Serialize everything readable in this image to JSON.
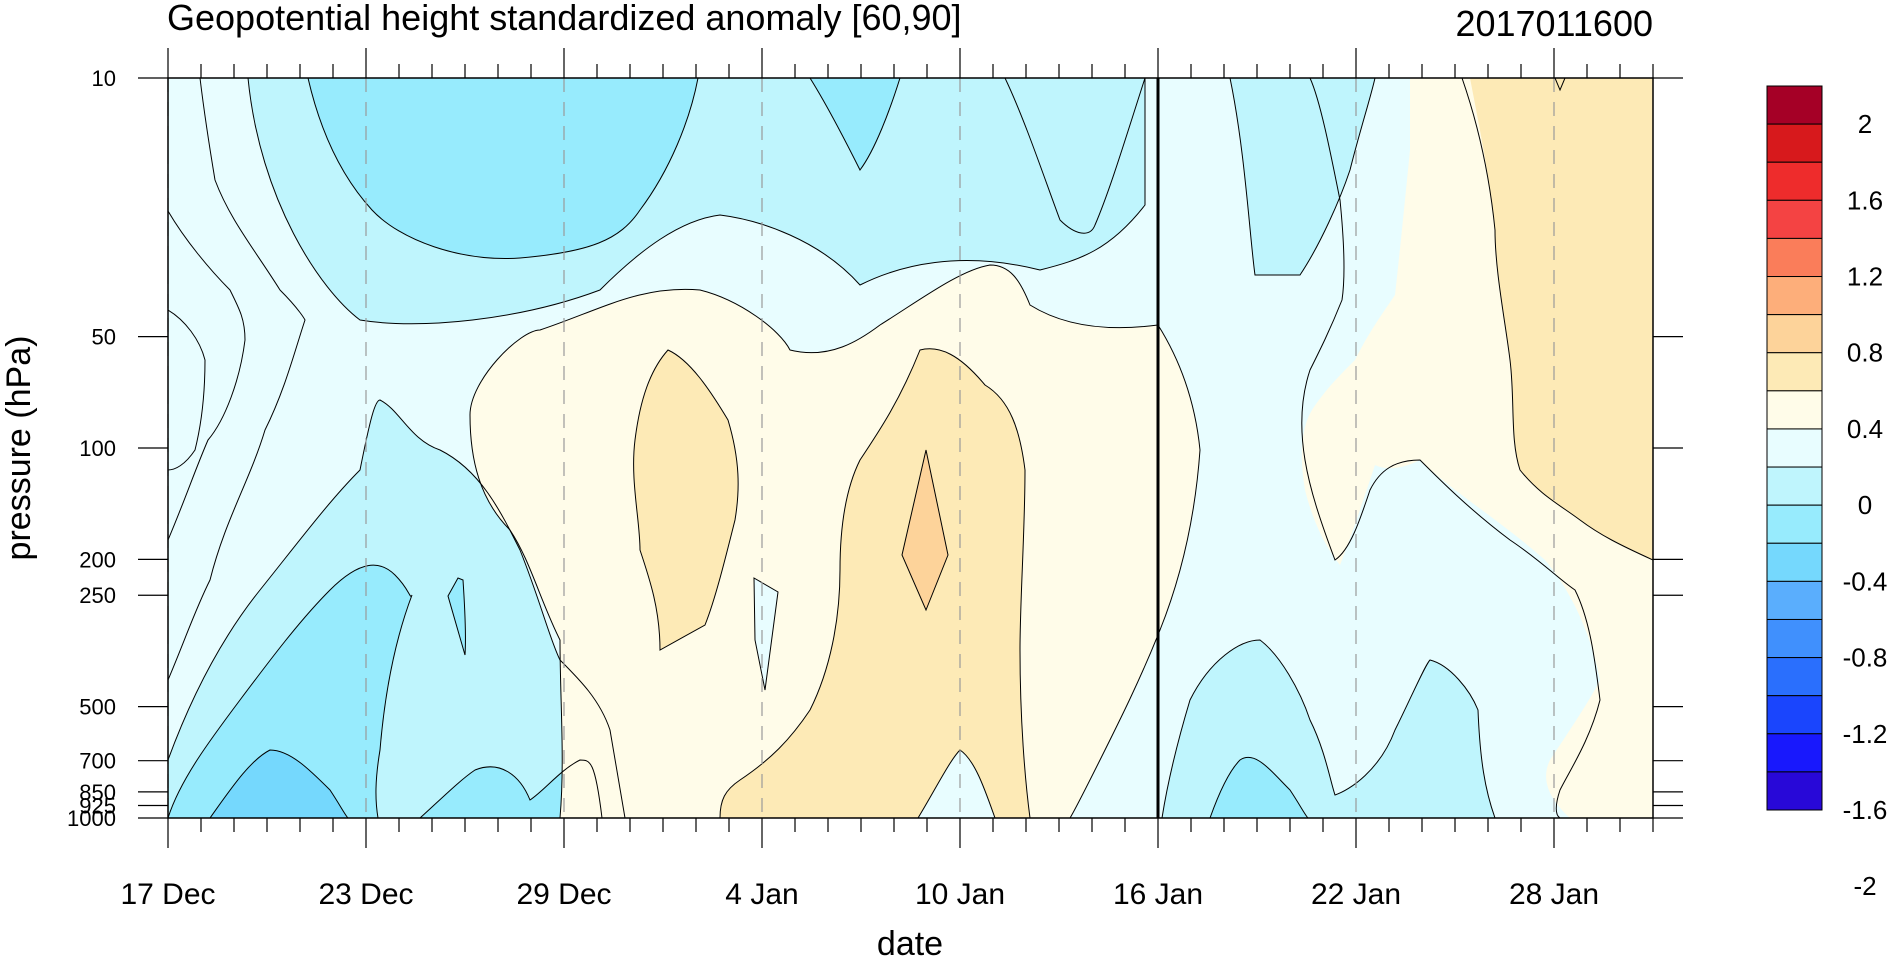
{
  "chart_data": {
    "type": "heatmap",
    "title": "Geopotential height standardized anomaly [60,90]",
    "subtitle": "2017011600",
    "xlabel": "date",
    "ylabel": "pressure (hPa)",
    "x_ticks": [
      "17 Dec",
      "23 Dec",
      "29 Dec",
      "4 Jan",
      "10 Jan",
      "16 Jan",
      "22 Jan",
      "28 Jan"
    ],
    "x_tick_days": [
      0,
      6,
      12,
      18,
      24,
      30,
      36,
      42
    ],
    "x_range_days": [
      0,
      45
    ],
    "y_ticks": [
      "10",
      "50",
      "100",
      "200",
      "250",
      "500",
      "700",
      "850",
      "925",
      "1000"
    ],
    "y_tick_values": [
      10,
      50,
      100,
      200,
      250,
      500,
      700,
      850,
      925,
      1000
    ],
    "y_scale": "log",
    "y_range": [
      1000,
      10
    ],
    "current_date_day": 30,
    "colorbar": {
      "labels": [
        "2",
        "1.6",
        "1.2",
        "0.8",
        "0.4",
        "0",
        "-0.4",
        "-0.8",
        "-1.2",
        "-1.6",
        "-2"
      ],
      "colors": [
        "#a50026",
        "#d7191c",
        "#ee2c2c",
        "#f44343",
        "#fa7d5a",
        "#fdae7a",
        "#fdd39a",
        "#fdeab6",
        "#fffce9",
        "#e8fdff",
        "#bff5fd",
        "#97ebfd",
        "#75d8fd",
        "#5aaefd",
        "#4090fd",
        "#2a6ffd",
        "#1a45fd",
        "#1818fd",
        "#2808d8"
      ],
      "level_values": [
        2,
        1.8,
        1.6,
        1.4,
        1.2,
        1.0,
        0.8,
        0.6,
        0.4,
        0.2,
        0,
        -0.2,
        -0.4,
        -0.6,
        -0.8,
        -1.0,
        -1.2,
        -1.4,
        -1.6,
        -1.8,
        -2
      ]
    },
    "anomaly_samples": {
      "levels": [
        10,
        30,
        50,
        100,
        200,
        300,
        500,
        700,
        1000
      ],
      "days": [
        0,
        3,
        6,
        9,
        12,
        15,
        18,
        21,
        24,
        27,
        30,
        33,
        36,
        39,
        42,
        45
      ],
      "values": [
        [
          0.1,
          -0.2,
          -0.4,
          -0.6,
          -0.5,
          -0.4,
          -0.3,
          -0.5,
          -0.1,
          -0.3,
          -0.1,
          -0.4,
          -0.2,
          0.1,
          0.2,
          0.2
        ],
        [
          0.3,
          -0.1,
          -0.4,
          -0.6,
          -0.4,
          -0.2,
          -0.2,
          -0.4,
          -0.1,
          -0.3,
          -0.1,
          -0.4,
          -0.1,
          0.1,
          0.2,
          0.2
        ],
        [
          0.5,
          0.0,
          -0.2,
          -0.3,
          -0.2,
          0.0,
          0.0,
          0.0,
          0.1,
          0.0,
          0.0,
          -0.1,
          -0.1,
          0.1,
          0.2,
          0.2
        ],
        [
          0.4,
          -0.1,
          -0.3,
          -0.3,
          0.0,
          0.3,
          0.1,
          0.3,
          0.4,
          0.1,
          0.0,
          -0.1,
          0.1,
          0.1,
          0.2,
          0.2
        ],
        [
          0.1,
          -0.2,
          -0.4,
          -0.3,
          -0.1,
          0.3,
          0.2,
          0.3,
          0.6,
          0.3,
          0.0,
          -0.1,
          0.1,
          0.0,
          0.1,
          0.1
        ],
        [
          0.0,
          -0.3,
          -0.5,
          -0.4,
          -0.2,
          0.2,
          0.0,
          0.3,
          0.2,
          0.1,
          0.0,
          -0.2,
          -0.1,
          -0.1,
          0.1,
          0.1
        ],
        [
          -0.1,
          -0.4,
          -0.5,
          -0.4,
          -0.3,
          0.1,
          0.1,
          0.2,
          0.1,
          0.1,
          -0.1,
          -0.3,
          -0.2,
          -0.3,
          0.0,
          0.1
        ],
        [
          -0.3,
          -0.5,
          -0.5,
          -0.4,
          -0.4,
          0.0,
          0.2,
          0.2,
          0.0,
          0.1,
          -0.2,
          -0.5,
          -0.2,
          -0.3,
          0.0,
          0.1
        ],
        [
          -0.4,
          -0.6,
          -0.5,
          -0.5,
          -0.4,
          0.0,
          0.3,
          0.2,
          -0.1,
          0.0,
          -0.2,
          -0.6,
          -0.2,
          -0.3,
          0.0,
          0.1
        ]
      ]
    }
  }
}
